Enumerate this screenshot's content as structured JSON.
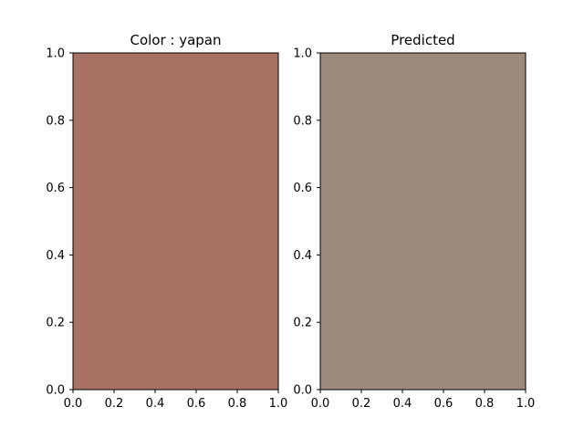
{
  "chart_data": [
    {
      "type": "heatmap",
      "title": "Color : yapan",
      "fill_color": "#a87263",
      "xlim": [
        0.0,
        1.0
      ],
      "ylim": [
        0.0,
        1.0
      ],
      "x_ticks": [
        "0.0",
        "0.2",
        "0.4",
        "0.6",
        "0.8",
        "1.0"
      ],
      "y_ticks": [
        "0.0",
        "0.2",
        "0.4",
        "0.6",
        "0.8",
        "1.0"
      ],
      "grid": false
    },
    {
      "type": "heatmap",
      "title": "Predicted",
      "fill_color": "#9e8a7b",
      "xlim": [
        0.0,
        1.0
      ],
      "ylim": [
        0.0,
        1.0
      ],
      "x_ticks": [
        "0.0",
        "0.2",
        "0.4",
        "0.6",
        "0.8",
        "1.0"
      ],
      "y_ticks": [
        "0.0",
        "0.2",
        "0.4",
        "0.6",
        "0.8",
        "1.0"
      ],
      "grid": false
    }
  ]
}
